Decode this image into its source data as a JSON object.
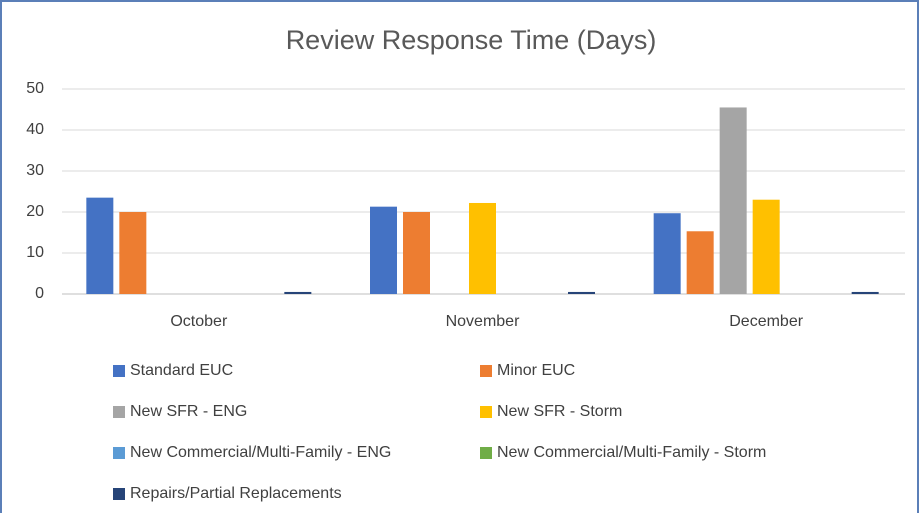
{
  "chart_data": {
    "type": "bar",
    "title": "Review Response Time (Days)",
    "categories": [
      "October",
      "November",
      "December"
    ],
    "series": [
      {
        "name": "Standard EUC",
        "color": "#4472c4",
        "values": [
          23.5,
          21.3,
          19.7
        ]
      },
      {
        "name": "Minor EUC",
        "color": "#ed7d31",
        "values": [
          20,
          20,
          15.3
        ]
      },
      {
        "name": "New SFR - ENG",
        "color": "#a5a5a5",
        "values": [
          0,
          0,
          45.5
        ]
      },
      {
        "name": "New SFR - Storm",
        "color": "#ffc000",
        "values": [
          0,
          22.2,
          23
        ]
      },
      {
        "name": "New Commercial/Multi-Family - ENG",
        "color": "#5b9bd5",
        "values": [
          0,
          0,
          0
        ]
      },
      {
        "name": "New Commercial/Multi-Family - Storm",
        "color": "#70ad47",
        "values": [
          0,
          0,
          0
        ]
      },
      {
        "name": "Repairs/Partial Replacements",
        "color": "#264478",
        "values": [
          0.5,
          0.5,
          0.5
        ]
      }
    ],
    "ylim": [
      0,
      50
    ],
    "yticks": [
      0,
      10,
      20,
      30,
      40,
      50
    ],
    "grid": true
  }
}
